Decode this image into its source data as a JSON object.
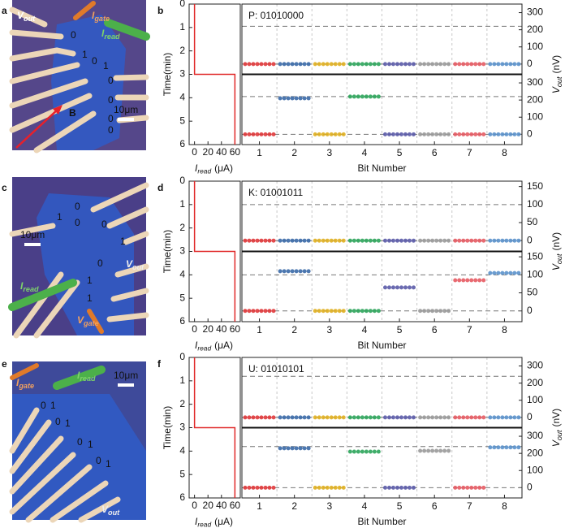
{
  "images": [
    {
      "letter": "a",
      "digits": [
        "0",
        "1",
        "0",
        "1",
        "0",
        "0",
        "0",
        "0"
      ],
      "scale_bar": "10μm",
      "field_label": "B",
      "terminals": [
        {
          "symbol": "V",
          "subscript": "out"
        },
        {
          "symbol": "I",
          "subscript": "gate"
        },
        {
          "symbol": "I",
          "subscript": "read"
        }
      ]
    },
    {
      "letter": "c",
      "digits": [
        "0",
        "1",
        "0",
        "0",
        "1",
        "0",
        "1",
        "1"
      ],
      "scale_bar": "10μm",
      "terminals": [
        {
          "symbol": "V",
          "subscript": "out"
        },
        {
          "symbol": "I",
          "subscript": "read"
        },
        {
          "symbol": "V",
          "subscript": "gate"
        }
      ]
    },
    {
      "letter": "e",
      "digits": [
        "0",
        "1",
        "0",
        "1",
        "0",
        "1",
        "0",
        "1"
      ],
      "scale_bar": "10μm",
      "terminals": [
        {
          "symbol": "I",
          "subscript": "gate"
        },
        {
          "symbol": "I",
          "subscript": "read"
        },
        {
          "symbol": "V",
          "subscript": "out"
        }
      ]
    }
  ],
  "chart_data": [
    {
      "type": "bit-readout",
      "letter": "b",
      "title": "P: 01010000",
      "time_panel": {
        "ylabel": "Time(min)",
        "ylim": [
          0,
          6
        ],
        "yticks": [
          0,
          1,
          2,
          3,
          4,
          5,
          6
        ],
        "xlabel": {
          "symbol": "I",
          "subscript": "read",
          "unit": "(μA)"
        },
        "xlim": [
          -8,
          68
        ],
        "xticks": [
          0,
          20,
          40,
          60
        ],
        "x": [
          0,
          0,
          60,
          60
        ],
        "y": [
          0,
          3,
          3,
          6
        ],
        "color": "#e02828"
      },
      "xlabel": "Bit Number",
      "categories": [
        "1",
        "2",
        "3",
        "4",
        "5",
        "6",
        "7",
        "8"
      ],
      "y2label": {
        "symbol": "V",
        "subscript": "out",
        "unit": "(nV)"
      },
      "y2lim": [
        -60,
        350
      ],
      "y2ticks": [
        0,
        100,
        200,
        300
      ],
      "reference_lines": [
        0,
        220
      ],
      "bit_colors": [
        "#e0383a",
        "#3a6aa8",
        "#e0b020",
        "#2ca55a",
        "#5a5aa8",
        "#9a9a9a",
        "#e65a62",
        "#5a92cc"
      ],
      "values": [
        [
          0,
          0,
          0,
          0,
          0,
          0,
          0,
          0
        ],
        [
          0,
          210,
          0,
          220,
          0,
          0,
          0,
          0
        ]
      ]
    },
    {
      "type": "bit-readout",
      "letter": "d",
      "title": "K: 01001011",
      "time_panel": {
        "ylabel": "Time(min)",
        "ylim": [
          0,
          6
        ],
        "yticks": [
          0,
          1,
          2,
          3,
          4,
          5,
          6
        ],
        "xlabel": {
          "symbol": "I",
          "subscript": "read",
          "unit": "(μA)"
        },
        "xlim": [
          -8,
          68
        ],
        "xticks": [
          0,
          20,
          40,
          60
        ],
        "x": [
          0,
          0,
          60,
          60
        ],
        "y": [
          0,
          3,
          3,
          6
        ],
        "color": "#e02828"
      },
      "xlabel": "Bit Number",
      "categories": [
        "1",
        "2",
        "3",
        "4",
        "5",
        "6",
        "7",
        "8"
      ],
      "y2label": {
        "symbol": "V",
        "subscript": "out",
        "unit": "(nV)"
      },
      "y2lim": [
        -30,
        165
      ],
      "y2ticks": [
        0,
        50,
        100,
        150
      ],
      "reference_lines": [
        0,
        100
      ],
      "bit_colors": [
        "#e0383a",
        "#3a6aa8",
        "#e0b020",
        "#2ca55a",
        "#5a5aa8",
        "#9a9a9a",
        "#e65a62",
        "#5a92cc"
      ],
      "values": [
        [
          0,
          0,
          0,
          0,
          0,
          0,
          0,
          0
        ],
        [
          0,
          110,
          0,
          0,
          65,
          0,
          85,
          105
        ]
      ]
    },
    {
      "type": "bit-readout",
      "letter": "f",
      "title": "U: 01010101",
      "time_panel": {
        "ylabel": "Time(min)",
        "ylim": [
          0,
          6
        ],
        "yticks": [
          0,
          1,
          2,
          3,
          4,
          5,
          6
        ],
        "xlabel": {
          "symbol": "I",
          "subscript": "read",
          "unit": "(μA)"
        },
        "xlim": [
          -8,
          68
        ],
        "xticks": [
          0,
          20,
          40,
          60
        ],
        "x": [
          0,
          0,
          60,
          60
        ],
        "y": [
          0,
          3,
          3,
          6
        ],
        "color": "#e02828"
      },
      "xlabel": "Bit Number",
      "categories": [
        "1",
        "2",
        "3",
        "4",
        "5",
        "6",
        "7",
        "8"
      ],
      "y2label": {
        "symbol": "V",
        "subscript": "out",
        "unit": "(nV)"
      },
      "y2lim": [
        -60,
        350
      ],
      "y2ticks": [
        0,
        100,
        200,
        300
      ],
      "reference_lines": [
        0,
        240
      ],
      "bit_colors": [
        "#e0383a",
        "#3a6aa8",
        "#e0b020",
        "#2ca55a",
        "#5a5aa8",
        "#9a9a9a",
        "#e65a62",
        "#5a92cc"
      ],
      "values": [
        [
          0,
          0,
          0,
          0,
          0,
          0,
          0,
          0
        ],
        [
          0,
          230,
          0,
          210,
          0,
          215,
          0,
          235
        ]
      ]
    }
  ]
}
